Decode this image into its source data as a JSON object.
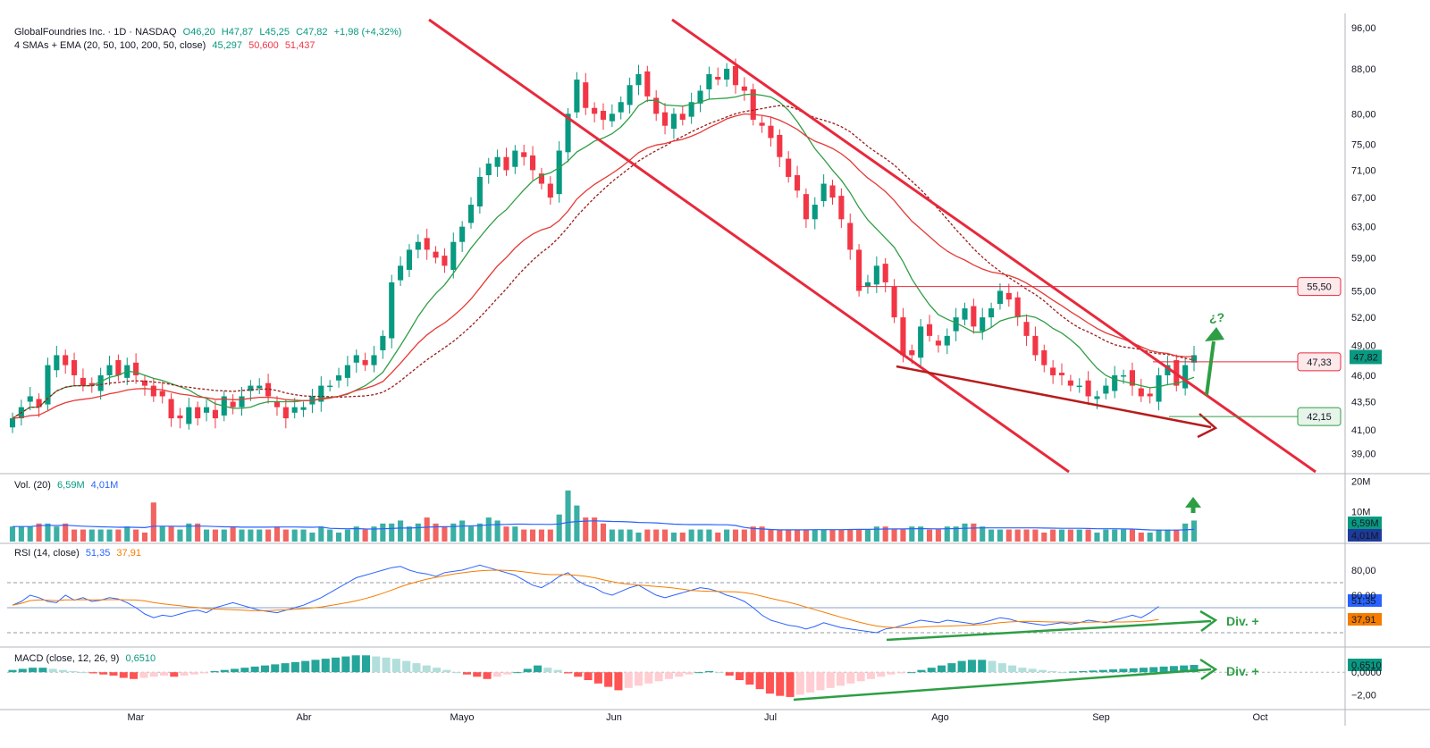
{
  "header": {
    "symbol_line": "GlobalFoundries Inc. · 1D · NASDAQ",
    "open": "O46,20",
    "high": "H47,87",
    "low": "L45,25",
    "close": "C47,82",
    "change": "+1,98 (+4,32%)",
    "ma_title": "4 SMAs + EMA (20, 50, 100, 200, 50, close)",
    "ma_values": [
      "45,297",
      "50,600",
      "51,437"
    ]
  },
  "colors": {
    "up": "#089981",
    "down": "#f23645",
    "sma20": "#2e9e44",
    "sma50": "#9b1c1c",
    "ema50": "#e53935",
    "channel": "#e8293c",
    "trend_low": "#b71c1c",
    "div": "#2e9e44",
    "rsi": "#2962ff",
    "rsi_ma": "#f57c00",
    "vol_ma": "#2962ff"
  },
  "labels": {
    "question": "¿?",
    "div_rsi": "Div. +",
    "div_macd": "Div. +"
  },
  "price_levels": {
    "resistance": "55,50",
    "current_marker": "47,33",
    "support": "42,15",
    "last_price": "47,82"
  },
  "volume_panel": {
    "title": "Vol. (20)",
    "value": "6,59M",
    "ma_value": "4,01M",
    "ticks": [
      "20M",
      "10M"
    ],
    "last": "6,59M",
    "last_ma": "4,01M"
  },
  "rsi_panel": {
    "title": "RSI (14, close)",
    "value": "51,35",
    "ma_value": "37,91",
    "ticks": [
      "80,00",
      "60,00"
    ],
    "last": "51,35",
    "last_ma": "37,91"
  },
  "macd_panel": {
    "title": "MACD (close, 12, 26, 9)",
    "value": "0,6510",
    "ticks": [
      "0,0000",
      "−2,00"
    ],
    "last": "0,6510"
  },
  "chart_data": {
    "type": "candlestick",
    "title": "GlobalFoundries Inc. · 1D · NASDAQ",
    "x_months": [
      "Mar",
      "Abr",
      "Mayo",
      "Jun",
      "Jul",
      "Ago",
      "Sep",
      "Oct"
    ],
    "y_ticks": [
      "96,00",
      "88,00",
      "80,00",
      "75,00",
      "71,00",
      "67,00",
      "63,00",
      "59,00",
      "55,00",
      "52,00",
      "49,00",
      "46,00",
      "43,50",
      "41,00",
      "39,00"
    ],
    "y_scale": "log",
    "closes_approx": [
      42,
      43,
      44,
      43,
      47,
      48,
      47,
      46,
      45,
      45,
      46,
      47,
      46,
      47,
      46,
      45,
      44,
      44,
      42,
      42,
      43,
      42,
      43,
      42,
      44,
      43,
      44,
      45,
      45,
      44,
      43,
      42,
      43,
      43,
      44,
      45,
      45,
      46,
      47,
      48,
      47,
      48,
      50,
      56,
      58,
      60,
      61,
      60,
      59,
      58,
      61,
      63,
      66,
      70,
      72,
      73,
      71,
      74,
      73,
      71,
      69,
      67,
      74,
      80,
      86,
      81,
      80,
      79,
      80,
      82,
      85,
      87,
      83,
      80,
      78,
      80,
      79,
      82,
      84,
      87,
      86,
      88,
      85,
      84,
      79,
      78,
      76,
      73,
      70,
      68,
      64,
      66,
      69,
      67,
      64,
      60,
      55,
      56,
      58,
      56,
      52,
      48,
      48,
      51,
      50,
      49,
      50,
      52,
      53,
      51,
      52,
      53,
      55,
      54,
      52,
      50,
      48,
      47,
      46,
      46,
      45,
      45,
      44,
      44,
      45,
      46,
      46,
      45,
      44,
      44,
      46,
      47,
      45,
      47,
      48
    ],
    "volume_approx_M": [
      5,
      5,
      5,
      6,
      6,
      5,
      6,
      4,
      4,
      4,
      4,
      4,
      4,
      5,
      4,
      3,
      13,
      5,
      5,
      4,
      6,
      6,
      4,
      4,
      4,
      5,
      4,
      4,
      4,
      4,
      5,
      4,
      4,
      4,
      3,
      5,
      4,
      3,
      4,
      5,
      4,
      5,
      6,
      6,
      7,
      5,
      6,
      8,
      6,
      5,
      6,
      7,
      5,
      6,
      8,
      7,
      5,
      5,
      4,
      4,
      4,
      4,
      9,
      17,
      12,
      8,
      8,
      6,
      4,
      4,
      4,
      3,
      4,
      4,
      4,
      3,
      3,
      4,
      4,
      4,
      3,
      4,
      4,
      4,
      5,
      5,
      4,
      4,
      4,
      4,
      4,
      4,
      4,
      4,
      4,
      4,
      4,
      4,
      5,
      5,
      4,
      4,
      5,
      5,
      4,
      4,
      5,
      5,
      6,
      6,
      5,
      4,
      4,
      4,
      4,
      4,
      4,
      3,
      4,
      4,
      4,
      4,
      4,
      3,
      4,
      4,
      4,
      4,
      3,
      3,
      4,
      4,
      4,
      6,
      7
    ],
    "rsi_approx": [
      52,
      55,
      60,
      58,
      55,
      54,
      60,
      56,
      58,
      55,
      56,
      58,
      57,
      54,
      50,
      45,
      42,
      44,
      43,
      45,
      47,
      48,
      46,
      50,
      52,
      54,
      52,
      50,
      48,
      47,
      46,
      48,
      50,
      52,
      55,
      58,
      62,
      66,
      70,
      74,
      76,
      78,
      80,
      82,
      83,
      80,
      78,
      77,
      75,
      78,
      79,
      80,
      82,
      84,
      82,
      80,
      78,
      76,
      72,
      68,
      66,
      70,
      75,
      78,
      72,
      68,
      66,
      62,
      60,
      63,
      66,
      68,
      64,
      60,
      58,
      60,
      62,
      64,
      66,
      65,
      63,
      60,
      58,
      55,
      50,
      44,
      40,
      38,
      36,
      35,
      33,
      35,
      38,
      36,
      34,
      33,
      32,
      31,
      30,
      33,
      34,
      36,
      38,
      40,
      39,
      38,
      40,
      39,
      38,
      37,
      38,
      40,
      42,
      41,
      39,
      38,
      37,
      36,
      37,
      38,
      37,
      38,
      40,
      39,
      38,
      40,
      42,
      44,
      42,
      46,
      51
    ],
    "macd_hist_approx": [
      0.2,
      0.3,
      0.4,
      0.4,
      0.3,
      0.2,
      0.1,
      0.0,
      -0.1,
      -0.2,
      -0.3,
      -0.5,
      -0.6,
      -0.5,
      -0.4,
      -0.3,
      -0.4,
      -0.3,
      -0.2,
      -0.1,
      0.1,
      0.2,
      0.3,
      0.4,
      0.5,
      0.6,
      0.7,
      0.8,
      0.9,
      1.0,
      1.1,
      1.2,
      1.3,
      1.4,
      1.5,
      1.5,
      1.4,
      1.3,
      1.2,
      1.0,
      0.8,
      0.6,
      0.4,
      0.2,
      0.0,
      -0.2,
      -0.4,
      -0.6,
      -0.4,
      -0.2,
      0.0,
      0.3,
      0.6,
      0.4,
      0.2,
      -0.1,
      -0.4,
      -0.7,
      -1.0,
      -1.3,
      -1.6,
      -1.4,
      -1.2,
      -1.0,
      -0.8,
      -0.6,
      -0.4,
      -0.2,
      0.0,
      0.1,
      0.0,
      -0.3,
      -0.7,
      -1.1,
      -1.5,
      -1.9,
      -2.1,
      -2.2,
      -2.0,
      -1.8,
      -1.6,
      -1.4,
      -1.2,
      -1.0,
      -0.8,
      -0.6,
      -0.4,
      -0.2,
      -0.1,
      0.0,
      0.2,
      0.4,
      0.6,
      0.8,
      1.0,
      1.1,
      1.1,
      1.0,
      0.8,
      0.6,
      0.4,
      0.3,
      0.2,
      0.1,
      0.0,
      0.05,
      0.1,
      0.15,
      0.2,
      0.25,
      0.3,
      0.35,
      0.4,
      0.45,
      0.5,
      0.55,
      0.6,
      0.65
    ]
  }
}
